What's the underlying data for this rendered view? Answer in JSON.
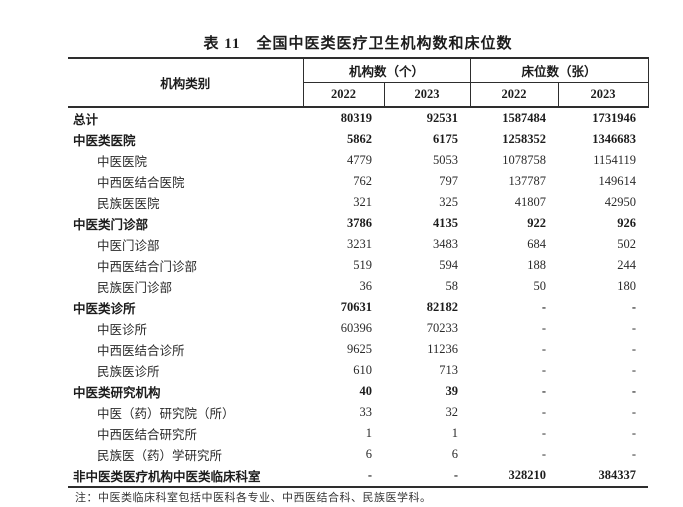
{
  "title": "表 11　全国中医类医疗卫生机构数和床位数",
  "table": {
    "col1_header": "机构类别",
    "group_headers": [
      "机构数（个）",
      "床位数（张）"
    ],
    "year_headers": [
      "2022",
      "2023",
      "2022",
      "2023"
    ],
    "rows": [
      {
        "label": "总计",
        "bold": true,
        "indent": false,
        "values": [
          "80319",
          "92531",
          "1587484",
          "1731946"
        ]
      },
      {
        "label": "中医类医院",
        "bold": true,
        "indent": false,
        "values": [
          "5862",
          "6175",
          "1258352",
          "1346683"
        ]
      },
      {
        "label": "中医医院",
        "bold": false,
        "indent": true,
        "values": [
          "4779",
          "5053",
          "1078758",
          "1154119"
        ]
      },
      {
        "label": "中西医结合医院",
        "bold": false,
        "indent": true,
        "values": [
          "762",
          "797",
          "137787",
          "149614"
        ]
      },
      {
        "label": "民族医医院",
        "bold": false,
        "indent": true,
        "values": [
          "321",
          "325",
          "41807",
          "42950"
        ]
      },
      {
        "label": "中医类门诊部",
        "bold": true,
        "indent": false,
        "values": [
          "3786",
          "4135",
          "922",
          "926"
        ]
      },
      {
        "label": "中医门诊部",
        "bold": false,
        "indent": true,
        "values": [
          "3231",
          "3483",
          "684",
          "502"
        ]
      },
      {
        "label": "中西医结合门诊部",
        "bold": false,
        "indent": true,
        "values": [
          "519",
          "594",
          "188",
          "244"
        ]
      },
      {
        "label": "民族医门诊部",
        "bold": false,
        "indent": true,
        "values": [
          "36",
          "58",
          "50",
          "180"
        ]
      },
      {
        "label": "中医类诊所",
        "bold": true,
        "indent": false,
        "values": [
          "70631",
          "82182",
          "-",
          "-"
        ]
      },
      {
        "label": "中医诊所",
        "bold": false,
        "indent": true,
        "values": [
          "60396",
          "70233",
          "-",
          "-"
        ]
      },
      {
        "label": "中西医结合诊所",
        "bold": false,
        "indent": true,
        "values": [
          "9625",
          "11236",
          "-",
          "-"
        ]
      },
      {
        "label": "民族医诊所",
        "bold": false,
        "indent": true,
        "values": [
          "610",
          "713",
          "-",
          "-"
        ]
      },
      {
        "label": "中医类研究机构",
        "bold": true,
        "indent": false,
        "values": [
          "40",
          "39",
          "-",
          "-"
        ]
      },
      {
        "label": "中医（药）研究院（所）",
        "bold": false,
        "indent": true,
        "values": [
          "33",
          "32",
          "-",
          "-"
        ]
      },
      {
        "label": "中西医结合研究所",
        "bold": false,
        "indent": true,
        "values": [
          "1",
          "1",
          "-",
          "-"
        ]
      },
      {
        "label": "民族医（药）学研究所",
        "bold": false,
        "indent": true,
        "values": [
          "6",
          "6",
          "-",
          "-"
        ]
      },
      {
        "label": "非中医类医疗机构中医类临床科室",
        "bold": true,
        "indent": false,
        "values": [
          "-",
          "-",
          "328210",
          "384337"
        ]
      }
    ]
  },
  "note": "注：中医类临床科室包括中医科各专业、中西医结合科、民族医学科。",
  "colors": {
    "text": "#2a2a2a",
    "bold_text": "#1c1c1c",
    "border": "#2e2e2e",
    "background": "#ffffff"
  }
}
